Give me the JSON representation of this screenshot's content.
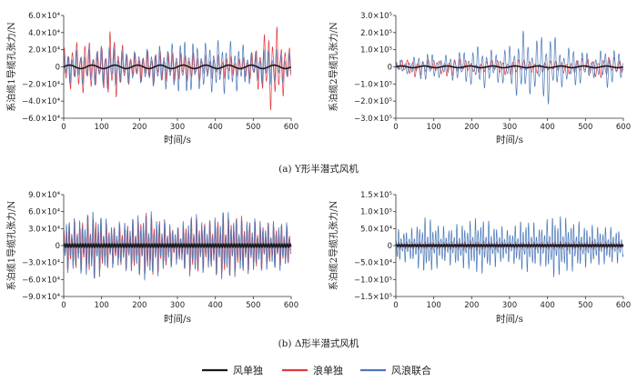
{
  "chart_data": [
    {
      "type": "line",
      "panel": "(a) left",
      "ylabel": "系泊缆1导缆孔张力/N",
      "xlabel": "时间/s",
      "xlim": [
        0,
        600
      ],
      "xticks": [
        "0",
        "100",
        "200",
        "300",
        "400",
        "500",
        "600"
      ],
      "ylim": [
        -60000,
        60000
      ],
      "yticks": [
        {
          "v": 60000,
          "l": "6.0×10⁴"
        },
        {
          "v": 40000,
          "l": "4.0×10⁴"
        },
        {
          "v": 20000,
          "l": "2.0×10⁴"
        },
        {
          "v": 0,
          "l": "0"
        },
        {
          "v": -20000,
          "l": "−2.0×10⁴"
        },
        {
          "v": -40000,
          "l": "−4.0×10⁴"
        },
        {
          "v": -60000,
          "l": "−6.0×10⁴"
        }
      ],
      "series": [
        {
          "name": "风单独",
          "color": "#1a1a1a",
          "x": [
            0,
            100,
            200,
            300,
            400,
            500,
            600
          ],
          "amp": [
            2000,
            2000,
            2000,
            2000,
            2000,
            2000,
            2000
          ],
          "period": 60
        },
        {
          "name": "浪单独",
          "color": "#e0383e",
          "x": [
            0,
            25,
            60,
            90,
            110,
            125,
            150,
            190,
            230,
            280,
            330,
            380,
            420,
            470,
            500,
            530,
            550,
            570,
            590,
            600
          ],
          "amp": [
            22000,
            28000,
            34000,
            22000,
            30000,
            48000,
            28000,
            15000,
            20000,
            20000,
            18000,
            14000,
            15000,
            12000,
            20000,
            40000,
            55000,
            42000,
            25000,
            20000
          ],
          "period": 11
        },
        {
          "name": "风浪联合",
          "color": "#4a78b8",
          "x": [
            0,
            40,
            80,
            110,
            125,
            150,
            190,
            230,
            280,
            330,
            350,
            380,
            420,
            470,
            500,
            530,
            560,
            600
          ],
          "amp": [
            20000,
            20000,
            22000,
            28000,
            30000,
            22000,
            18000,
            22000,
            28000,
            35000,
            28000,
            30000,
            32000,
            28000,
            18000,
            25000,
            22000,
            15000
          ],
          "period": 11
        }
      ]
    },
    {
      "type": "line",
      "panel": "(a) right",
      "ylabel": "系泊缆2导缆孔张力/N",
      "xlabel": "时间/s",
      "xlim": [
        0,
        600
      ],
      "xticks": [
        "0",
        "100",
        "200",
        "300",
        "400",
        "500",
        "600"
      ],
      "ylim": [
        -300000,
        300000
      ],
      "yticks": [
        {
          "v": 300000,
          "l": "3.0×10⁵"
        },
        {
          "v": 200000,
          "l": "2.0×10⁵"
        },
        {
          "v": 100000,
          "l": "1.0×10⁵"
        },
        {
          "v": 0,
          "l": "0"
        },
        {
          "v": -100000,
          "l": "−1.0×10⁵"
        },
        {
          "v": -200000,
          "l": "−2.0×10⁵"
        },
        {
          "v": -300000,
          "l": "−3.0×10⁵"
        }
      ],
      "series": [
        {
          "name": "风单独",
          "color": "#1a1a1a",
          "x": [
            0,
            100,
            200,
            300,
            400,
            500,
            600
          ],
          "amp": [
            5000,
            5000,
            5000,
            5000,
            5000,
            5000,
            5000
          ],
          "period": 60
        },
        {
          "name": "浪单独",
          "color": "#e0383e",
          "x": [
            0,
            50,
            100,
            150,
            200,
            250,
            300,
            350,
            400,
            450,
            500,
            550,
            600
          ],
          "amp": [
            30000,
            60000,
            40000,
            60000,
            30000,
            40000,
            50000,
            40000,
            35000,
            40000,
            50000,
            70000,
            40000
          ],
          "period": 14
        },
        {
          "name": "风浪联合",
          "color": "#4a78b8",
          "x": [
            0,
            30,
            80,
            120,
            150,
            180,
            230,
            260,
            300,
            340,
            360,
            400,
            440,
            480,
            520,
            560,
            600
          ],
          "amp": [
            40000,
            40000,
            90000,
            60000,
            80000,
            100000,
            130000,
            90000,
            130000,
            220000,
            140000,
            240000,
            110000,
            120000,
            60000,
            130000,
            70000
          ],
          "period": 12
        }
      ]
    },
    {
      "type": "line",
      "panel": "(b) left",
      "ylabel": "系泊缆1导缆孔张力/N",
      "xlabel": "时间/s",
      "xlim": [
        0,
        600
      ],
      "xticks": [
        "0",
        "100",
        "200",
        "300",
        "400",
        "500",
        "600"
      ],
      "ylim": [
        -90000,
        90000
      ],
      "yticks": [
        {
          "v": 90000,
          "l": "9.0×10⁴"
        },
        {
          "v": 60000,
          "l": "6.0×10⁴"
        },
        {
          "v": 30000,
          "l": "3.0×10⁴"
        },
        {
          "v": 0,
          "l": "0"
        },
        {
          "v": -30000,
          "l": "−3.0×10⁴"
        },
        {
          "v": -60000,
          "l": "−6.0×10⁴"
        },
        {
          "v": -90000,
          "l": "−9.0×10⁴"
        }
      ],
      "series": [
        {
          "name": "风单独",
          "color": "#1a1a1a",
          "x": [
            0,
            100,
            200,
            300,
            400,
            500,
            600
          ],
          "amp": [
            3000,
            3000,
            3000,
            3000,
            3000,
            3000,
            3000
          ],
          "period": 7
        },
        {
          "name": "浪单独",
          "color": "#e0383e",
          "x": [
            0,
            40,
            80,
            130,
            180,
            220,
            260,
            300,
            340,
            380,
            420,
            460,
            500,
            540,
            580,
            600
          ],
          "amp": [
            45000,
            45000,
            60000,
            35000,
            45000,
            60000,
            45000,
            30000,
            55000,
            40000,
            60000,
            50000,
            45000,
            40000,
            40000,
            30000
          ],
          "period": 7
        },
        {
          "name": "风浪联合",
          "color": "#4a78b8",
          "x": [
            0,
            40,
            80,
            130,
            180,
            220,
            260,
            300,
            340,
            380,
            420,
            460,
            500,
            540,
            580,
            600
          ],
          "amp": [
            50000,
            50000,
            65000,
            40000,
            50000,
            65000,
            50000,
            35000,
            60000,
            45000,
            65000,
            55000,
            50000,
            45000,
            45000,
            35000
          ],
          "period": 7
        }
      ]
    },
    {
      "type": "line",
      "panel": "(b) right",
      "ylabel": "系泊缆2导缆孔张力/N",
      "xlabel": "时间/s",
      "xlim": [
        0,
        600
      ],
      "xticks": [
        "0",
        "100",
        "200",
        "300",
        "400",
        "500",
        "600"
      ],
      "ylim": [
        -150000,
        150000
      ],
      "yticks": [
        {
          "v": 150000,
          "l": "1.5×10⁵"
        },
        {
          "v": 100000,
          "l": "1.0×10⁵"
        },
        {
          "v": 50000,
          "l": "5.0×10⁴"
        },
        {
          "v": 0,
          "l": "0"
        },
        {
          "v": -50000,
          "l": "−5.0×10⁴"
        },
        {
          "v": -100000,
          "l": "−1.0×10⁵"
        },
        {
          "v": -150000,
          "l": "−1.5×10⁵"
        }
      ],
      "series": [
        {
          "name": "风单独",
          "color": "#1a1a1a",
          "x": [
            0,
            100,
            200,
            300,
            400,
            500,
            600
          ],
          "amp": [
            3000,
            3000,
            3000,
            3000,
            3000,
            3000,
            3000
          ],
          "period": 7
        },
        {
          "name": "浪单独",
          "color": "#e0383e",
          "x": [
            0,
            100,
            200,
            300,
            400,
            500,
            600
          ],
          "amp": [
            12000,
            12000,
            15000,
            12000,
            12000,
            15000,
            12000
          ],
          "period": 7
        },
        {
          "name": "风浪联合",
          "color": "#4a78b8",
          "x": [
            0,
            40,
            80,
            130,
            180,
            220,
            260,
            300,
            340,
            380,
            420,
            460,
            500,
            540,
            580,
            600
          ],
          "amp": [
            50000,
            50000,
            90000,
            55000,
            70000,
            90000,
            65000,
            50000,
            85000,
            60000,
            100000,
            80000,
            65000,
            60000,
            55000,
            45000
          ],
          "period": 7
        }
      ]
    }
  ],
  "captions": {
    "a": "(a) Y形半潜式风机",
    "b": "(b) Δ形半潜式风机"
  },
  "legend": [
    {
      "name": "风单独",
      "color": "#1a1a1a"
    },
    {
      "name": "浪单独",
      "color": "#e0383e"
    },
    {
      "name": "风浪联合",
      "color": "#4a78b8"
    }
  ]
}
